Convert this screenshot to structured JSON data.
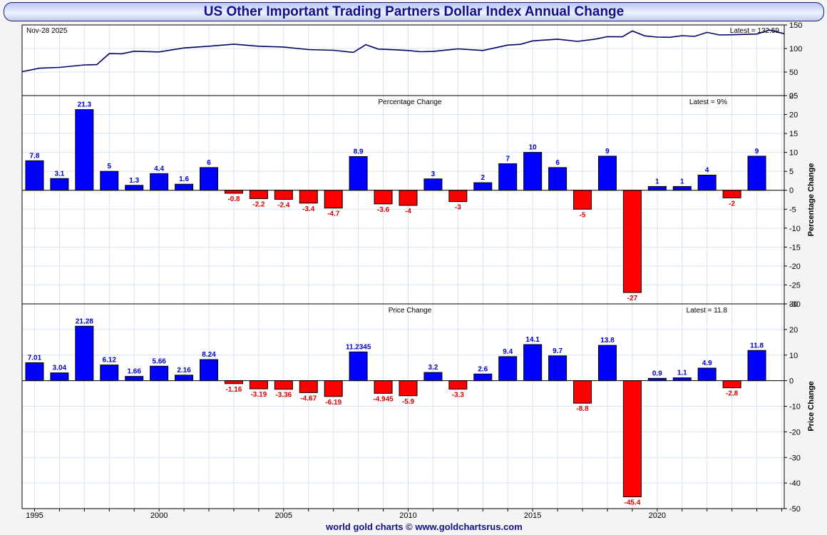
{
  "title": "US Other Important Trading Partners Dollar Index Annual Change",
  "footer": "world gold charts © www.goldchartsrus.com",
  "chart_data": [
    {
      "type": "line",
      "date_label": "Nov-28  2025",
      "latest_label": "Latest = 132.59",
      "ylim": [
        0,
        150
      ],
      "yticks": [
        0,
        50,
        100,
        150
      ],
      "x": [
        1994.5,
        1995.2,
        1996.0,
        1997.0,
        1997.5,
        1998.0,
        1998.5,
        1999.0,
        2000.0,
        2001.0,
        2002.0,
        2003.0,
        2004.0,
        2005.0,
        2006.0,
        2007.0,
        2007.8,
        2008.3,
        2008.8,
        2009.5,
        2010.0,
        2010.5,
        2011.0,
        2012.0,
        2013.0,
        2014.0,
        2014.5,
        2015.0,
        2016.0,
        2016.8,
        2017.5,
        2018.0,
        2018.6,
        2019.0,
        2019.5,
        2020.0,
        2020.5,
        2021.0,
        2021.5,
        2022.0,
        2022.5,
        2023.0,
        2024.0,
        2024.5,
        2025.1
      ],
      "y": [
        52,
        57,
        61,
        64,
        67,
        88,
        90,
        93,
        94,
        100,
        106,
        108,
        106,
        102,
        99,
        95,
        93,
        107,
        100,
        96,
        97,
        92,
        95,
        98,
        97,
        106,
        110,
        115,
        121,
        114,
        121,
        124,
        126,
        136,
        128,
        123,
        125,
        126,
        127,
        133,
        130,
        128,
        132,
        138,
        132.59
      ]
    },
    {
      "type": "bar",
      "title": "Percentage Change",
      "latest_label": "Latest = 9%",
      "ylabel": "Percentage Change",
      "ylim": [
        -30,
        25
      ],
      "yticks": [
        -30,
        -25,
        -20,
        -15,
        -10,
        -5,
        0,
        5,
        10,
        15,
        20,
        25
      ],
      "categories": [
        1995,
        1996,
        1997,
        1998,
        1999,
        2000,
        2001,
        2002,
        2003,
        2004,
        2005,
        2006,
        2007,
        2008,
        2009,
        2010,
        2011,
        2012,
        2013,
        2014,
        2015,
        2016,
        2017,
        2018,
        2019,
        2020,
        2021,
        2022,
        2023,
        2024
      ],
      "values": [
        7.8,
        3.1,
        21.3,
        5,
        1.3,
        4.4,
        1.6,
        6,
        -0.8,
        -2.2,
        -2.4,
        -3.4,
        -4.7,
        8.9,
        -3.6,
        -4,
        3,
        -3,
        2,
        7,
        10,
        6,
        -5,
        9,
        -27,
        1,
        1,
        4,
        -2,
        9
      ],
      "labels": [
        "7.8",
        "3.1",
        "21.3",
        "5",
        "1.3",
        "4.4",
        "1.6",
        "6",
        "-0.8",
        "-2.2",
        "-2.4",
        "-3.4",
        "-4.7",
        "8.9",
        "-3.6",
        "-4",
        "3",
        "-3",
        "2",
        "7",
        "10",
        "6",
        "-5",
        "9",
        "-27",
        "1",
        "1",
        "4",
        "-2",
        "9"
      ]
    },
    {
      "type": "bar",
      "title": "Price Change",
      "latest_label": "Latest = 11.8",
      "ylabel": "Price Change",
      "ylim": [
        -50,
        30
      ],
      "yticks": [
        -50,
        -40,
        -30,
        -20,
        -10,
        0,
        10,
        20,
        30
      ],
      "categories": [
        1995,
        1996,
        1997,
        1998,
        1999,
        2000,
        2001,
        2002,
        2003,
        2004,
        2005,
        2006,
        2007,
        2008,
        2009,
        2010,
        2011,
        2012,
        2013,
        2014,
        2015,
        2016,
        2017,
        2018,
        2019,
        2020,
        2021,
        2022,
        2023,
        2024
      ],
      "values": [
        7.01,
        3.04,
        21.28,
        6.12,
        1.66,
        5.66,
        2.16,
        8.24,
        -1.16,
        -3.19,
        -3.36,
        -4.67,
        -6.19,
        11.2345,
        -4.945,
        -5.9,
        3.2,
        -3.3,
        2.6,
        9.4,
        14.1,
        9.7,
        -8.8,
        13.8,
        -45.4,
        0.9,
        1.1,
        4.9,
        -2.8,
        11.8
      ],
      "labels": [
        "7.01",
        "3.04",
        "21.28",
        "6.12",
        "1.66",
        "5.66",
        "2.16",
        "8.24",
        "-1.16",
        "-3.19",
        "-3.36",
        "-4.67",
        "-6.19",
        "11.2345",
        "-4.945",
        "-5.9",
        "3.2",
        "-3.3",
        "2.6",
        "9.4",
        "14.1",
        "9.7",
        "-8.8",
        "13.8",
        "-45.4",
        "0.9",
        "1.1",
        "4.9",
        "-2.8",
        "11.8"
      ]
    }
  ],
  "x_axis": {
    "ticks": [
      1995,
      2000,
      2005,
      2010,
      2015,
      2020
    ],
    "range": [
      1994.5,
      2025.1
    ]
  },
  "colors": {
    "positive": "#0000ff",
    "negative": "#ff0000",
    "line": "#000066",
    "grid": "#d4e4f0"
  }
}
